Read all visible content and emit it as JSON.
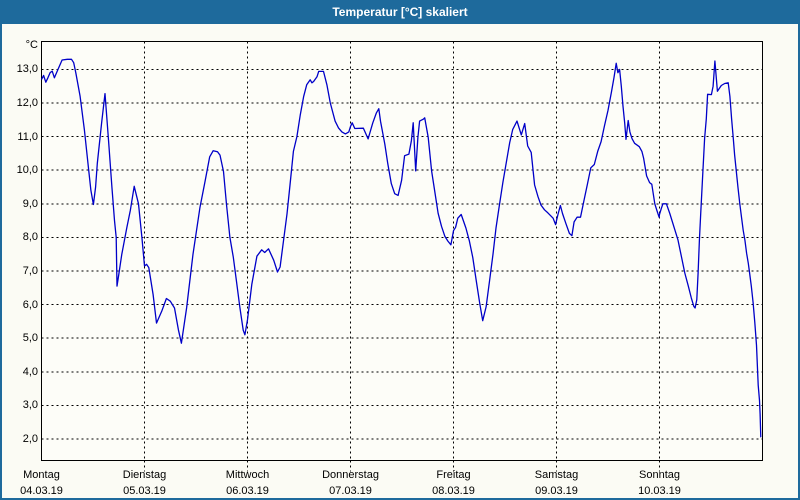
{
  "window": {
    "title": "Temperatur [°C] skaliert"
  },
  "colors": {
    "titlebar": "#1e6a9c",
    "window_border": "#1e6a9c",
    "background": "#fbfbf4",
    "plot_background": "#fdfdf8",
    "line": "#0000c8",
    "grid": "#000000"
  },
  "chart_data": {
    "type": "line",
    "title": "Temperatur [°C] skaliert",
    "ylabel": "°C",
    "series_name": "Temperatur",
    "grid": "dashed",
    "legend": "none",
    "ylim": [
      1.36,
      13.83
    ],
    "y_ticks": [
      2,
      3,
      4,
      5,
      6,
      7,
      8,
      9,
      10,
      11,
      12,
      13
    ],
    "y_tick_labels": [
      "2,0",
      "3,0",
      "4,0",
      "5,0",
      "6,0",
      "7,0",
      "8,0",
      "9,0",
      "10,0",
      "11,0",
      "12,0",
      "13,0"
    ],
    "xlim_hours": [
      0,
      168
    ],
    "hours_per_day": 24,
    "x_days": [
      {
        "name": "Montag",
        "date": "04.03.19"
      },
      {
        "name": "Dienstag",
        "date": "05.03.19"
      },
      {
        "name": "Mittwoch",
        "date": "06.03.19"
      },
      {
        "name": "Donnerstag",
        "date": "07.03.19"
      },
      {
        "name": "Freitag",
        "date": "08.03.19"
      },
      {
        "name": "Samstag",
        "date": "09.03.19"
      },
      {
        "name": "Sonntag",
        "date": "10.03.19"
      }
    ],
    "points": [
      [
        0,
        12.7
      ],
      [
        0.5,
        12.82
      ],
      [
        1,
        12.62
      ],
      [
        1.5,
        12.75
      ],
      [
        2,
        12.9
      ],
      [
        2.5,
        12.95
      ],
      [
        3,
        12.75
      ],
      [
        4,
        13.05
      ],
      [
        4.8,
        13.28
      ],
      [
        6,
        13.3
      ],
      [
        7,
        13.3
      ],
      [
        7.5,
        13.2
      ],
      [
        8,
        12.9
      ],
      [
        9,
        12.2
      ],
      [
        10,
        11.2
      ],
      [
        11,
        10.0
      ],
      [
        11.5,
        9.4
      ],
      [
        12.1,
        8.98
      ],
      [
        12.6,
        9.5
      ],
      [
        13,
        10.2
      ],
      [
        14,
        11.4
      ],
      [
        14.8,
        12.28
      ],
      [
        15.6,
        10.9
      ],
      [
        16.4,
        9.5
      ],
      [
        17,
        8.5
      ],
      [
        17.4,
        8.0
      ],
      [
        17.6,
        6.55
      ],
      [
        18,
        6.9
      ],
      [
        18.7,
        7.5
      ],
      [
        19.9,
        8.3
      ],
      [
        20.7,
        8.8
      ],
      [
        21.6,
        9.52
      ],
      [
        22.6,
        9.0
      ],
      [
        23.4,
        8.0
      ],
      [
        24,
        7.15
      ],
      [
        24.5,
        7.2
      ],
      [
        25,
        7.1
      ],
      [
        26,
        6.3
      ],
      [
        26.8,
        5.45
      ],
      [
        28,
        5.8
      ],
      [
        29.1,
        6.18
      ],
      [
        30,
        6.1
      ],
      [
        31,
        5.9
      ],
      [
        31.9,
        5.25
      ],
      [
        32.6,
        4.85
      ],
      [
        33.8,
        5.9
      ],
      [
        35.3,
        7.5
      ],
      [
        36.9,
        8.88
      ],
      [
        38.1,
        9.66
      ],
      [
        39.2,
        10.4
      ],
      [
        40,
        10.58
      ],
      [
        41,
        10.55
      ],
      [
        41.6,
        10.45
      ],
      [
        42.4,
        9.96
      ],
      [
        43.1,
        8.98
      ],
      [
        43.9,
        8.0
      ],
      [
        44.7,
        7.41
      ],
      [
        45.5,
        6.62
      ],
      [
        46.2,
        5.93
      ],
      [
        47,
        5.24
      ],
      [
        47.4,
        5.1
      ],
      [
        48,
        5.55
      ],
      [
        49,
        6.6
      ],
      [
        50.2,
        7.44
      ],
      [
        51.3,
        7.63
      ],
      [
        52,
        7.55
      ],
      [
        52.9,
        7.66
      ],
      [
        54.1,
        7.32
      ],
      [
        55,
        6.97
      ],
      [
        55.6,
        7.12
      ],
      [
        56.4,
        7.9
      ],
      [
        57.2,
        8.7
      ],
      [
        57.9,
        9.56
      ],
      [
        58.7,
        10.56
      ],
      [
        59.5,
        11.0
      ],
      [
        60.3,
        11.65
      ],
      [
        61.1,
        12.2
      ],
      [
        61.8,
        12.54
      ],
      [
        62.6,
        12.69
      ],
      [
        63,
        12.6
      ],
      [
        63.4,
        12.64
      ],
      [
        64.2,
        12.78
      ],
      [
        64.6,
        12.94
      ],
      [
        65.7,
        12.94
      ],
      [
        66.5,
        12.54
      ],
      [
        67.3,
        12.0
      ],
      [
        68.4,
        11.46
      ],
      [
        69.2,
        11.26
      ],
      [
        70,
        11.14
      ],
      [
        70.8,
        11.08
      ],
      [
        71.6,
        11.14
      ],
      [
        72,
        11.3
      ],
      [
        72.4,
        11.41
      ],
      [
        73,
        11.24
      ],
      [
        75,
        11.25
      ],
      [
        76.1,
        10.93
      ],
      [
        77.2,
        11.41
      ],
      [
        78,
        11.7
      ],
      [
        78.6,
        11.83
      ],
      [
        79,
        11.46
      ],
      [
        80,
        10.78
      ],
      [
        80.7,
        10.19
      ],
      [
        81.5,
        9.6
      ],
      [
        82.3,
        9.3
      ],
      [
        83.1,
        9.25
      ],
      [
        83.9,
        9.7
      ],
      [
        84.6,
        10.43
      ],
      [
        85.6,
        10.48
      ],
      [
        86.2,
        10.88
      ],
      [
        86.6,
        11.41
      ],
      [
        87.2,
        9.98
      ],
      [
        87.7,
        10.98
      ],
      [
        88.1,
        11.46
      ],
      [
        89,
        11.52
      ],
      [
        89.3,
        11.56
      ],
      [
        90.1,
        10.98
      ],
      [
        90.9,
        9.98
      ],
      [
        91.6,
        9.4
      ],
      [
        92.4,
        8.72
      ],
      [
        93.2,
        8.33
      ],
      [
        94,
        8.03
      ],
      [
        94.7,
        7.89
      ],
      [
        95.4,
        7.78
      ],
      [
        96,
        8.2
      ],
      [
        96.5,
        8.3
      ],
      [
        97,
        8.57
      ],
      [
        97.8,
        8.68
      ],
      [
        98.9,
        8.28
      ],
      [
        99.7,
        7.89
      ],
      [
        100.5,
        7.4
      ],
      [
        101.3,
        6.72
      ],
      [
        102.1,
        6.04
      ],
      [
        102.8,
        5.52
      ],
      [
        103.6,
        5.93
      ],
      [
        104.4,
        6.72
      ],
      [
        105.2,
        7.5
      ],
      [
        105.9,
        8.28
      ],
      [
        106.7,
        8.96
      ],
      [
        107.5,
        9.64
      ],
      [
        108.3,
        10.23
      ],
      [
        109.1,
        10.82
      ],
      [
        109.8,
        11.21
      ],
      [
        110.8,
        11.46
      ],
      [
        111.8,
        11.05
      ],
      [
        112.6,
        11.39
      ],
      [
        113.3,
        10.72
      ],
      [
        114.1,
        10.53
      ],
      [
        114.9,
        9.56
      ],
      [
        115.7,
        9.21
      ],
      [
        116.4,
        8.96
      ],
      [
        117.2,
        8.82
      ],
      [
        118,
        8.73
      ],
      [
        119.2,
        8.57
      ],
      [
        119.8,
        8.38
      ],
      [
        120,
        8.5
      ],
      [
        120.4,
        8.71
      ],
      [
        120.9,
        8.95
      ],
      [
        121.4,
        8.71
      ],
      [
        122.2,
        8.41
      ],
      [
        123,
        8.12
      ],
      [
        123.6,
        8.05
      ],
      [
        124.1,
        8.46
      ],
      [
        124.8,
        8.6
      ],
      [
        125.6,
        8.6
      ],
      [
        126.4,
        9.1
      ],
      [
        127.2,
        9.58
      ],
      [
        128,
        10.07
      ],
      [
        128.8,
        10.17
      ],
      [
        129.6,
        10.56
      ],
      [
        130.4,
        10.85
      ],
      [
        131.2,
        11.34
      ],
      [
        132,
        11.78
      ],
      [
        132.8,
        12.32
      ],
      [
        133.4,
        12.76
      ],
      [
        133.9,
        13.18
      ],
      [
        134.3,
        12.9
      ],
      [
        134.7,
        13.0
      ],
      [
        135.1,
        12.5
      ],
      [
        135.5,
        11.9
      ],
      [
        135.9,
        11.4
      ],
      [
        136.2,
        10.92
      ],
      [
        136.7,
        11.48
      ],
      [
        137.1,
        11.14
      ],
      [
        137.6,
        10.94
      ],
      [
        138.2,
        10.8
      ],
      [
        139.3,
        10.7
      ],
      [
        139.9,
        10.56
      ],
      [
        140.3,
        10.36
      ],
      [
        141,
        9.83
      ],
      [
        141.7,
        9.63
      ],
      [
        142.2,
        9.58
      ],
      [
        142.9,
        9.0
      ],
      [
        143.4,
        8.8
      ],
      [
        143.9,
        8.6
      ],
      [
        144,
        8.68
      ],
      [
        144.4,
        8.85
      ],
      [
        144.8,
        9.0
      ],
      [
        145.6,
        9.0
      ],
      [
        146.4,
        8.71
      ],
      [
        147.5,
        8.26
      ],
      [
        148.3,
        7.92
      ],
      [
        149.1,
        7.43
      ],
      [
        149.9,
        6.94
      ],
      [
        150.7,
        6.55
      ],
      [
        151.4,
        6.2
      ],
      [
        152,
        5.95
      ],
      [
        152.3,
        5.9
      ],
      [
        152.7,
        6.15
      ],
      [
        153,
        6.94
      ],
      [
        153.3,
        7.92
      ],
      [
        153.6,
        8.7
      ],
      [
        154,
        9.68
      ],
      [
        154.5,
        10.94
      ],
      [
        154.9,
        11.53
      ],
      [
        155.2,
        12.26
      ],
      [
        156.1,
        12.25
      ],
      [
        156.5,
        12.5
      ],
      [
        156.9,
        13.25
      ],
      [
        157.5,
        12.35
      ],
      [
        158.4,
        12.52
      ],
      [
        159.2,
        12.58
      ],
      [
        160,
        12.6
      ],
      [
        160.4,
        12.2
      ],
      [
        160.8,
        11.53
      ],
      [
        161.2,
        10.94
      ],
      [
        161.5,
        10.46
      ],
      [
        161.9,
        9.97
      ],
      [
        162.3,
        9.48
      ],
      [
        162.7,
        9.0
      ],
      [
        163.1,
        8.6
      ],
      [
        163.5,
        8.21
      ],
      [
        163.9,
        7.92
      ],
      [
        164.3,
        7.53
      ],
      [
        164.7,
        7.23
      ],
      [
        165,
        6.94
      ],
      [
        165.4,
        6.55
      ],
      [
        165.8,
        6.06
      ],
      [
        166.2,
        5.47
      ],
      [
        166.6,
        4.79
      ],
      [
        167,
        3.6
      ],
      [
        167.3,
        3.15
      ],
      [
        167.45,
        2.75
      ],
      [
        167.6,
        2.05
      ]
    ]
  }
}
